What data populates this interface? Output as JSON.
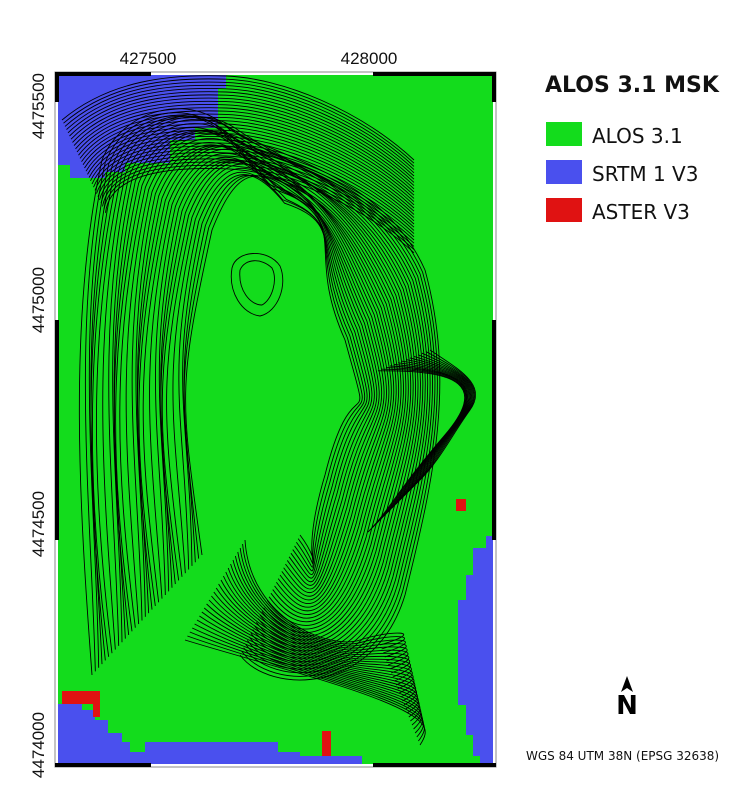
{
  "legend": {
    "title": "ALOS 3.1 MSK",
    "items": [
      {
        "label": "ALOS 3.1",
        "color": "#13dc1c"
      },
      {
        "label": "SRTM 1 V3",
        "color": "#4a50ee"
      },
      {
        "label": "ASTER V3",
        "color": "#e01212"
      }
    ]
  },
  "axes": {
    "x_ticks": [
      "427500",
      "428000"
    ],
    "y_ticks": [
      "4475500",
      "4475000",
      "4474500",
      "4474000"
    ]
  },
  "crs": "WGS 84 UTM 38N (EPSG 32638)",
  "north_arrow": {
    "label": "N",
    "icon": "north-arrow-icon"
  }
}
